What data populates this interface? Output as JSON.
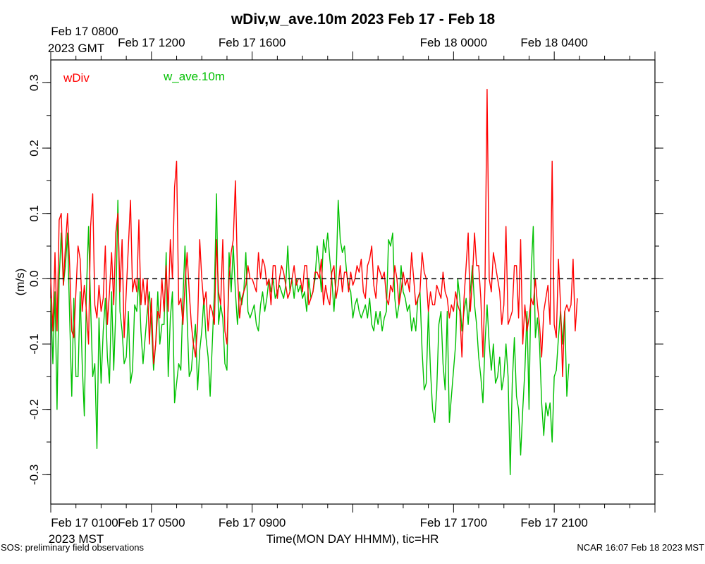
{
  "chart_data": {
    "type": "line",
    "title": "wDiv,w_ave.10m 2023 Feb 17 - Feb 18",
    "xlabel": "Time(MON DAY HHMM), tic=HR",
    "ylabel": "(m/s)",
    "top_axis_zone_label": [
      "Feb 17 0800",
      "2023 GMT"
    ],
    "bottom_axis_zone_label": [
      "Feb 17 0100",
      "2023 MST"
    ],
    "top_tick_labels": [
      "Feb 17 1200",
      "Feb 17 1600",
      "Feb 18 0000",
      "Feb 18 0400"
    ],
    "bottom_tick_labels": [
      "Feb 17 0500",
      "Feb 17 0900",
      "Feb 17 1700",
      "Feb 17 2100"
    ],
    "x_range_hours_mst": [
      0,
      24
    ],
    "ylim": [
      -0.345,
      0.335
    ],
    "y_ticks": [
      "0.3",
      "0.2",
      "0.1",
      "0.0",
      "-0.1",
      "-0.2",
      "-0.3"
    ],
    "zero_line": "dashed",
    "grid": false,
    "legend": "top-left",
    "series": [
      {
        "name": "wDiv",
        "color": "#ff0000",
        "sample_interval_hours": 0.08333,
        "values": [
          0.0,
          -0.08,
          0.04,
          -0.08,
          0.09,
          0.1,
          -0.01,
          0.05,
          0.1,
          0.02,
          -0.08,
          -0.09,
          -0.02,
          0.05,
          0.03,
          -0.05,
          -0.01,
          -0.05,
          -0.1,
          0.08,
          0.13,
          -0.04,
          -0.06,
          -0.01,
          -0.05,
          -0.03,
          0.05,
          -0.07,
          -0.02,
          0.04,
          -0.04,
          0.07,
          0.1,
          -0.02,
          0.06,
          -0.09,
          -0.02,
          0.05,
          0.12,
          -0.02,
          0.0,
          -0.02,
          0.09,
          -0.04,
          0.0,
          -0.04,
          0.0,
          -0.1,
          -0.03,
          -0.13,
          -0.1,
          -0.05,
          -0.06,
          0.0,
          -0.05,
          0.02,
          -0.05,
          0.06,
          0.0,
          0.14,
          0.18,
          -0.04,
          -0.03,
          -0.07,
          -0.01,
          0.04,
          -0.02,
          -0.07,
          -0.1,
          -0.12,
          -0.07,
          0.06,
          0.0,
          -0.04,
          -0.02,
          -0.08,
          -0.04,
          -0.05,
          -0.07,
          0.06,
          -0.02,
          -0.04,
          0.06,
          -0.08,
          -0.1,
          0.0,
          0.04,
          0.06,
          0.15,
          0.01,
          -0.06,
          -0.03,
          -0.02,
          -0.01,
          0.02,
          0.0,
          0.0,
          -0.01,
          -0.02,
          0.04,
          0.0,
          0.03,
          0.02,
          -0.01,
          0.0,
          -0.04,
          0.02,
          0.02,
          -0.03,
          0.0,
          0.02,
          0.01,
          -0.01,
          -0.03,
          -0.02,
          0.0,
          0.02,
          -0.01,
          0.0,
          0.0,
          -0.02,
          0.02,
          0.02,
          -0.04,
          -0.03,
          -0.02,
          0.01,
          0.01,
          0.0,
          0.03,
          -0.04,
          -0.01,
          -0.03,
          -0.04,
          0.01,
          0.02,
          -0.03,
          -0.01,
          0.02,
          -0.02,
          0.01,
          0.01,
          -0.02,
          0.01,
          -0.01,
          0.0,
          0.02,
          0.01,
          0.03,
          -0.02,
          -0.03,
          0.02,
          0.03,
          0.05,
          -0.01,
          -0.03,
          0.02,
          0.01,
          0.0,
          0.01,
          -0.03,
          -0.04,
          -0.01,
          -0.02,
          0.02,
          0.0,
          -0.04,
          -0.02,
          0.01,
          -0.01,
          0.0,
          -0.02,
          0.04,
          0.0,
          -0.04,
          -0.03,
          -0.02,
          0.04,
          0.01,
          0.0,
          -0.05,
          -0.02,
          -0.04,
          -0.04,
          -0.01,
          -0.02,
          -0.03,
          0.01,
          -0.02,
          -0.03,
          -0.06,
          -0.04,
          -0.05,
          -0.02,
          -0.04,
          -0.05,
          -0.12,
          -0.03,
          0.02,
          0.07,
          -0.05,
          0.0,
          0.07,
          0.02,
          0.02,
          -0.03,
          -0.12,
          -0.01,
          0.29,
          0.0,
          -0.02,
          0.04,
          0.02,
          0.0,
          -0.02,
          -0.07,
          -0.04,
          0.08,
          -0.07,
          -0.06,
          -0.05,
          0.02,
          0.02,
          -0.06,
          0.06,
          -0.1,
          -0.04,
          -0.08,
          -0.06,
          -0.03,
          -0.04,
          0.0,
          -0.04,
          -0.07,
          -0.12,
          -0.05,
          -0.03,
          -0.01,
          -0.07,
          0.18,
          -0.07,
          -0.09,
          0.03,
          -0.04,
          -0.15,
          -0.05,
          -0.04,
          -0.05,
          -0.04,
          0.03,
          -0.08,
          -0.03
        ]
      },
      {
        "name": "w_ave.10m",
        "color": "#00c000",
        "sample_interval_hours": 0.08333,
        "values": [
          -0.03,
          -0.13,
          -0.02,
          -0.2,
          0.0,
          0.07,
          -0.01,
          0.02,
          0.07,
          -0.06,
          -0.18,
          -0.03,
          -0.15,
          -0.15,
          -0.02,
          -0.13,
          -0.21,
          -0.02,
          0.08,
          -0.04,
          -0.15,
          -0.13,
          -0.26,
          -0.06,
          -0.16,
          -0.08,
          -0.03,
          -0.12,
          -0.16,
          -0.02,
          -0.14,
          -0.05,
          0.12,
          -0.05,
          -0.08,
          -0.13,
          -0.12,
          -0.05,
          -0.16,
          -0.14,
          -0.04,
          -0.05,
          0.0,
          -0.08,
          -0.13,
          -0.09,
          -0.05,
          -0.02,
          -0.07,
          -0.14,
          -0.1,
          -0.02,
          -0.1,
          -0.07,
          -0.07,
          0.04,
          -0.15,
          -0.06,
          -0.02,
          -0.19,
          -0.16,
          -0.13,
          -0.14,
          -0.03,
          0.05,
          -0.06,
          -0.15,
          -0.14,
          -0.1,
          -0.07,
          -0.17,
          -0.11,
          -0.08,
          -0.03,
          -0.09,
          -0.12,
          -0.18,
          -0.1,
          -0.02,
          0.13,
          -0.07,
          -0.04,
          -0.06,
          -0.13,
          -0.14,
          0.04,
          -0.02,
          0.05,
          -0.02,
          -0.07,
          -0.02,
          -0.04,
          -0.02,
          0.04,
          -0.05,
          -0.06,
          -0.05,
          -0.04,
          -0.07,
          -0.08,
          -0.04,
          -0.02,
          -0.05,
          -0.03,
          0.0,
          -0.02,
          0.0,
          -0.03,
          -0.02,
          -0.01,
          -0.02,
          -0.03,
          -0.01,
          0.05,
          -0.02,
          0.0,
          -0.03,
          0.0,
          -0.02,
          -0.01,
          -0.03,
          -0.02,
          -0.05,
          0.0,
          -0.03,
          -0.02,
          0.0,
          0.05,
          0.02,
          -0.02,
          0.06,
          0.04,
          0.07,
          0.03,
          0.0,
          -0.05,
          0.0,
          0.12,
          0.06,
          0.04,
          0.05,
          0.01,
          -0.01,
          -0.02,
          -0.06,
          -0.04,
          -0.03,
          -0.05,
          -0.06,
          -0.05,
          -0.04,
          -0.06,
          -0.03,
          -0.07,
          -0.08,
          -0.05,
          -0.07,
          -0.05,
          -0.08,
          -0.06,
          -0.05,
          0.06,
          0.05,
          0.07,
          -0.03,
          -0.06,
          -0.04,
          0.02,
          -0.02,
          -0.03,
          -0.05,
          -0.04,
          -0.08,
          -0.06,
          -0.08,
          -0.03,
          -0.02,
          -0.11,
          -0.17,
          -0.16,
          -0.05,
          -0.14,
          -0.2,
          -0.22,
          -0.17,
          -0.07,
          -0.05,
          -0.13,
          -0.17,
          -0.05,
          -0.22,
          -0.18,
          -0.14,
          -0.1,
          0.0,
          -0.03,
          -0.08,
          -0.05,
          -0.03,
          -0.07,
          -0.02,
          0.02,
          -0.04,
          -0.07,
          -0.12,
          -0.15,
          -0.19,
          -0.1,
          -0.04,
          -0.1,
          -0.14,
          -0.1,
          -0.16,
          -0.15,
          -0.12,
          -0.17,
          -0.15,
          -0.1,
          -0.15,
          -0.3,
          -0.16,
          -0.09,
          -0.18,
          -0.2,
          -0.27,
          -0.2,
          -0.14,
          -0.05,
          -0.2,
          0.01,
          0.08,
          -0.09,
          -0.06,
          -0.1,
          -0.19,
          -0.24,
          -0.19,
          -0.21,
          -0.19,
          -0.25,
          -0.15,
          -0.14,
          -0.09,
          -0.05,
          -0.1,
          -0.05,
          -0.18,
          -0.13
        ]
      }
    ]
  },
  "footer": {
    "left": "SOS: preliminary field observations",
    "right": "NCAR 16:07 Feb 18 2023 MST"
  }
}
